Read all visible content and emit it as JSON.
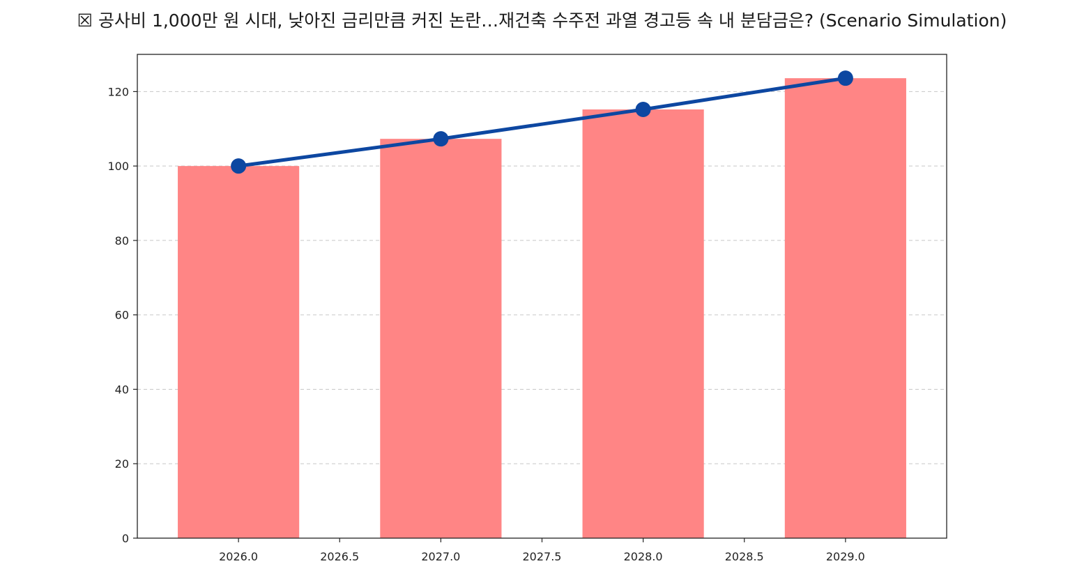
{
  "chart_data": {
    "type": "bar",
    "title": "☒ 공사비 1,000만 원 시대, 낮아진 금리만큼 커진 논란…재건축 수주전 과열 경고등 속 내 분담금은? (Scenario Simulation)",
    "x": [
      2026,
      2027,
      2028,
      2029
    ],
    "series": [
      {
        "type": "bar",
        "values": [
          100,
          107.3,
          115.2,
          123.6
        ],
        "color": "#ff8585"
      },
      {
        "type": "line",
        "values": [
          100,
          107.3,
          115.2,
          123.6
        ],
        "color": "#0d47a1"
      }
    ],
    "xlim": [
      2025.5,
      2029.5
    ],
    "ylim": [
      0,
      130
    ],
    "xticks": [
      "2026.0",
      "2026.5",
      "2027.0",
      "2027.5",
      "2028.0",
      "2028.5",
      "2029.0"
    ],
    "xtick_values": [
      2026.0,
      2026.5,
      2027.0,
      2027.5,
      2028.0,
      2028.5,
      2029.0
    ],
    "yticks": [
      "0",
      "20",
      "40",
      "60",
      "80",
      "100",
      "120"
    ],
    "ytick_values": [
      0,
      20,
      40,
      60,
      80,
      100,
      120
    ],
    "bar_width": 0.6,
    "grid": "y-dashed",
    "xlabel": "",
    "ylabel": "",
    "legend": "none"
  }
}
